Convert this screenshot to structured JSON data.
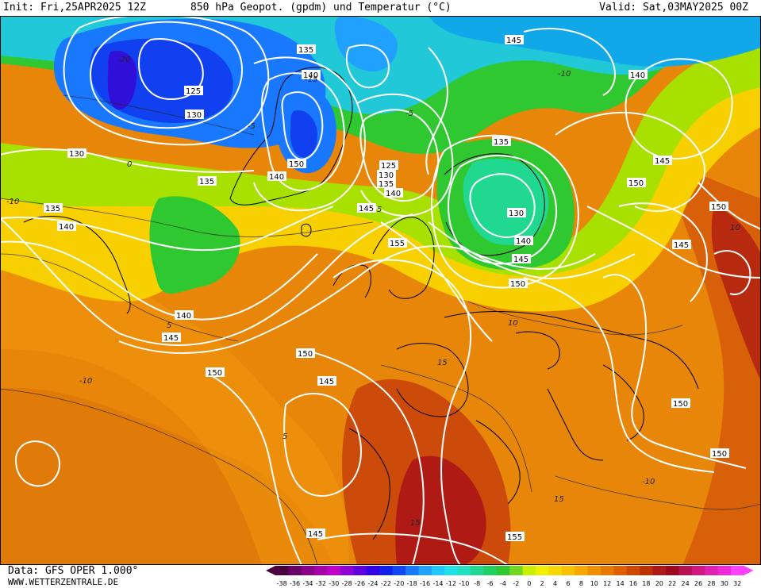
{
  "header": {
    "init": "Init: Fri,25APR2025 12Z",
    "title": "850 hPa Geopot. (gpdm) und Temperatur (°C)",
    "valid": "Valid: Sat,03MAY2025 00Z"
  },
  "footer": {
    "source": "Data: GFS OPER 1.000°",
    "website": "WWW.WETTERZENTRALE.DE"
  },
  "legend": {
    "ticks": [
      "-38",
      "-36",
      "-34",
      "-32",
      "-30",
      "-28",
      "-26",
      "-24",
      "-22",
      "-20",
      "-18",
      "-16",
      "-14",
      "-12",
      "-10",
      "-8",
      "-6",
      "-4",
      "-2",
      "0",
      "2",
      "4",
      "6",
      "8",
      "10",
      "12",
      "14",
      "16",
      "18",
      "20",
      "22",
      "24",
      "26",
      "28",
      "30",
      "32"
    ],
    "colors": [
      "#4b0040",
      "#6a006a",
      "#8a008a",
      "#a800a8",
      "#c000c8",
      "#9000d8",
      "#6000e0",
      "#3000e8",
      "#1020f0",
      "#1048f8",
      "#1878ff",
      "#20a0ff",
      "#20c8ff",
      "#20e0e8",
      "#20e0c0",
      "#20d890",
      "#20d060",
      "#30c830",
      "#70d820",
      "#c8f000",
      "#f0f000",
      "#f8d800",
      "#f8c000",
      "#f8a800",
      "#f09000",
      "#e87800",
      "#e06000",
      "#d04800",
      "#c03000",
      "#b01818",
      "#a00820",
      "#b81050",
      "#d01880",
      "#e020b0",
      "#f028d8",
      "#ff40ff"
    ]
  },
  "map": {
    "geopotential_labels": [
      "135",
      "140",
      "125",
      "130",
      "130",
      "135",
      "135",
      "140",
      "140",
      "145",
      "150",
      "125",
      "130",
      "135",
      "140",
      "145",
      "155",
      "140",
      "145",
      "150",
      "145",
      "150",
      "145",
      "150",
      "155",
      "150",
      "150",
      "135",
      "130",
      "140",
      "145",
      "150",
      "145",
      "140",
      "150",
      "145",
      "150",
      "145",
      "140"
    ],
    "temperature_labels": [
      "0",
      "-5",
      "5",
      "-10",
      "-5",
      "-10",
      "10",
      "-10",
      "5",
      "5",
      "10",
      "15",
      "-10",
      "15",
      "15",
      "-20",
      "-15"
    ]
  }
}
